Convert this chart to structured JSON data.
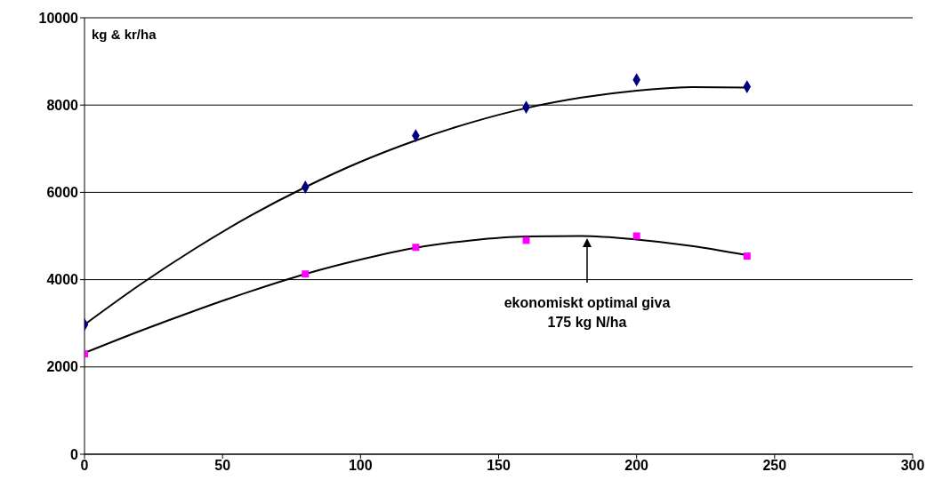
{
  "chart_data": {
    "type": "scatter",
    "ylabel": "kg & kr/ha",
    "xlim": [
      0,
      300
    ],
    "xticks": [
      0,
      50,
      100,
      150,
      200,
      250,
      300
    ],
    "ylim": [
      0,
      10000
    ],
    "yticks": [
      0,
      2000,
      4000,
      6000,
      8000,
      10000
    ],
    "grid": "y",
    "series": [
      {
        "marker": "diamond",
        "color": "#000080",
        "x": [
          0,
          80,
          120,
          160,
          200,
          240
        ],
        "values": [
          2970,
          6120,
          7300,
          7950,
          8580,
          8420
        ]
      },
      {
        "marker": "square",
        "color": "#ff00ff",
        "x": [
          0,
          80,
          120,
          160,
          200,
          240
        ],
        "values": [
          2300,
          4130,
          4740,
          4900,
          5000,
          4540
        ]
      },
      {
        "type": "line",
        "marker": "none",
        "color": "#000000",
        "x": [
          0,
          20,
          40,
          60,
          80,
          100,
          120,
          140,
          160,
          180,
          200,
          220,
          240
        ],
        "values": [
          2970,
          3880,
          4710,
          5460,
          6120,
          6700,
          7190,
          7600,
          7930,
          8170,
          8330,
          8410,
          8400
        ]
      },
      {
        "type": "line",
        "marker": "none",
        "color": "#000000",
        "x": [
          0,
          20,
          40,
          60,
          80,
          100,
          120,
          140,
          160,
          180,
          200,
          220,
          240
        ],
        "values": [
          2320,
          2820,
          3290,
          3730,
          4130,
          4460,
          4730,
          4900,
          4990,
          5000,
          4920,
          4770,
          4560
        ]
      }
    ],
    "annotations": [
      "ekonomiskt optimal giva\n175 kg N/ha"
    ]
  }
}
